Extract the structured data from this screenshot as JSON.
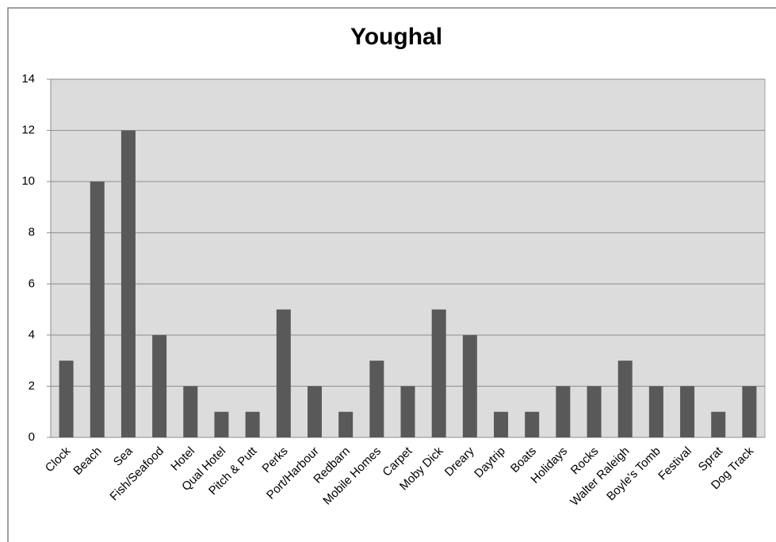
{
  "chart_data": {
    "type": "bar",
    "title": "Youghal",
    "categories": [
      "Clock",
      "Beach",
      "Sea",
      "Fish/Seafood",
      "Hotel",
      "Qual Hotel",
      "Pitch & Putt",
      "Perks",
      "Port/Harbour",
      "Redbarn",
      "Mobile Homes",
      "Carpet",
      "Moby Dick",
      "Dreary",
      "Daytrip",
      "Boats",
      "Holidays",
      "Rocks",
      "Walter Raleigh",
      "Boyle's Tomb",
      "Festival",
      "Sprat",
      "Dog Track"
    ],
    "values": [
      3,
      10,
      12,
      4,
      2,
      1,
      1,
      5,
      2,
      1,
      3,
      2,
      5,
      4,
      1,
      1,
      2,
      2,
      3,
      2,
      2,
      1,
      2
    ],
    "color": "#595959",
    "ylim": [
      0,
      14
    ],
    "yticks": [
      0,
      2,
      4,
      6,
      8,
      10,
      12,
      14
    ],
    "grid": true
  }
}
